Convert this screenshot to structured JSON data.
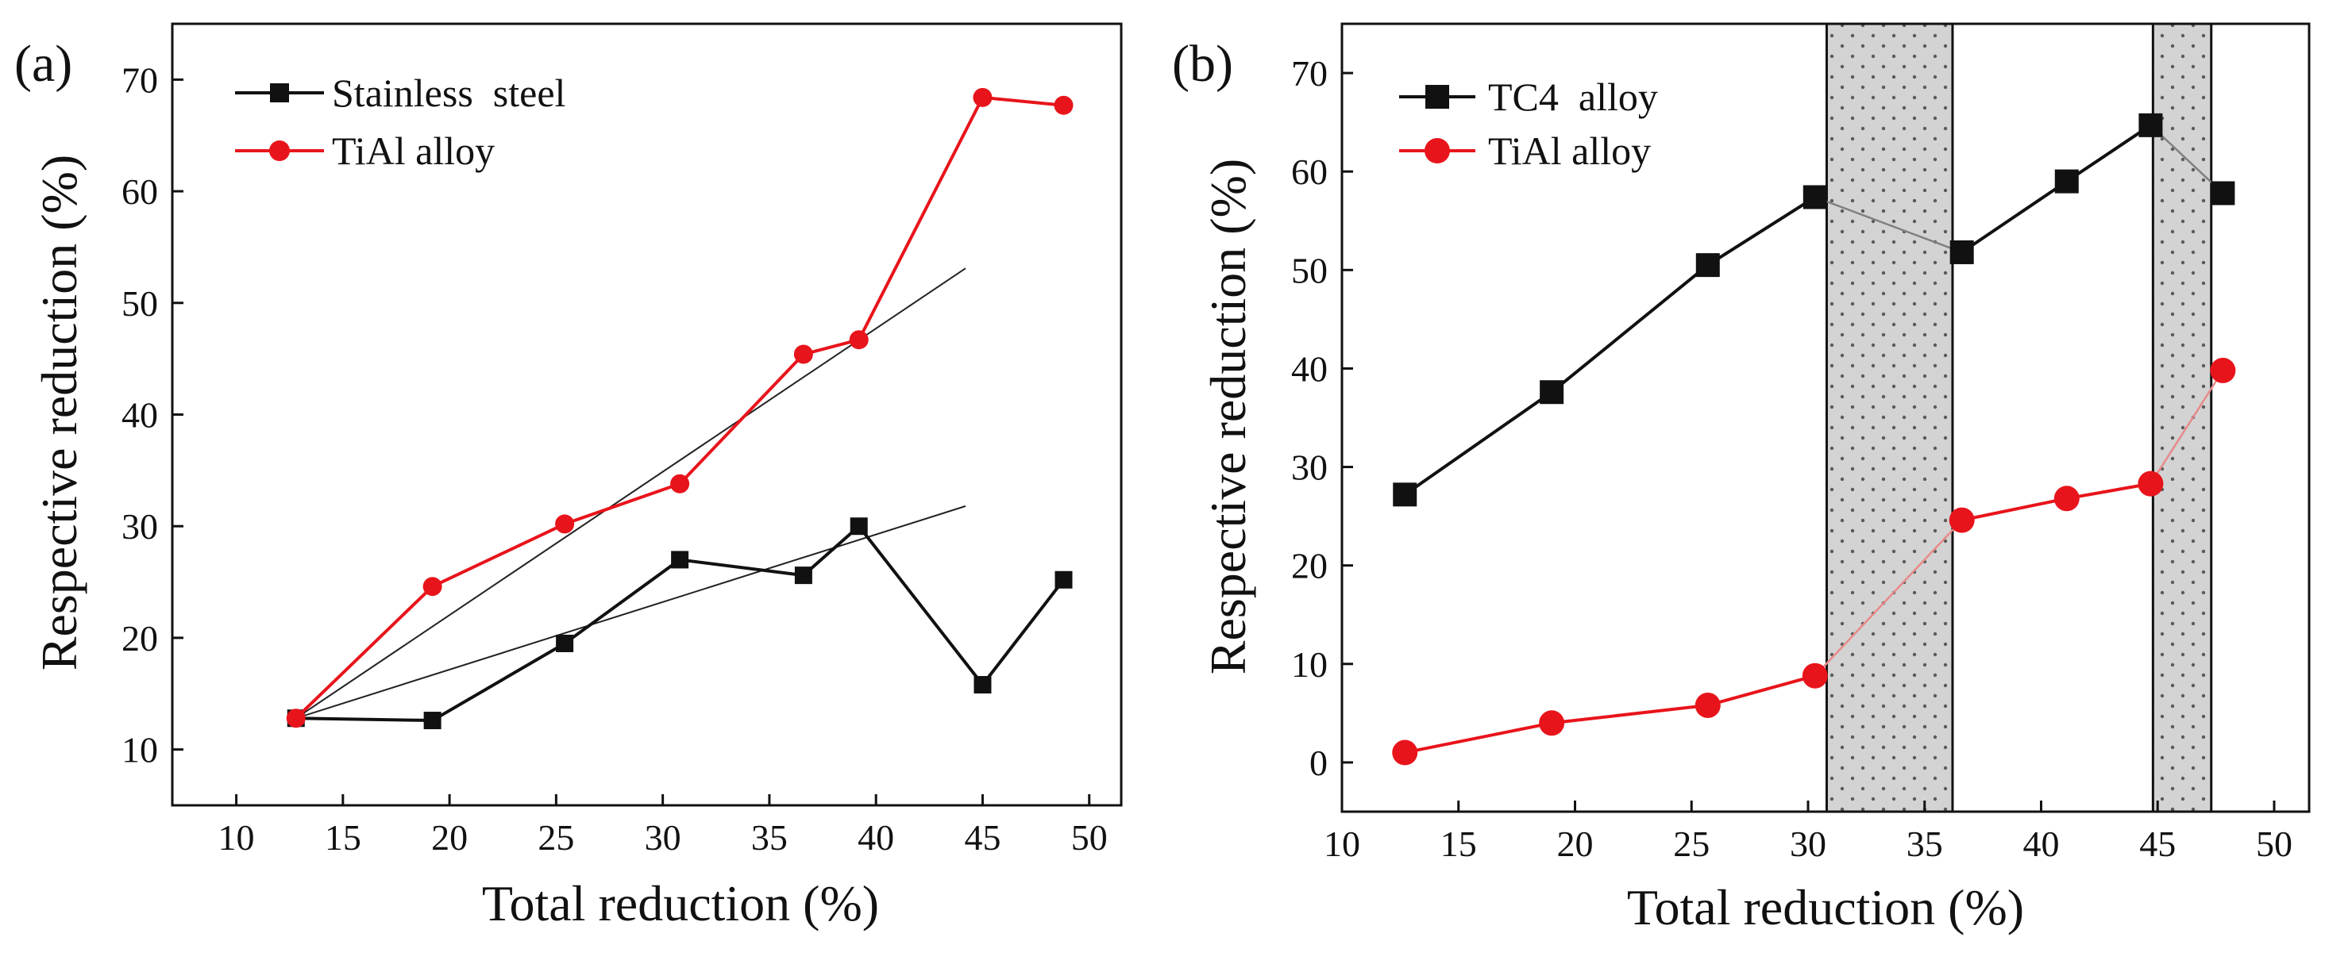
{
  "chart_data": [
    {
      "panel_label": "(a)",
      "type": "line",
      "xlabel": "Total reduction (%)",
      "ylabel": "Respective reduction (%)",
      "xlim": [
        7,
        51.5
      ],
      "ylim": [
        5,
        75
      ],
      "xticks": [
        10,
        15,
        20,
        25,
        30,
        35,
        40,
        45,
        50
      ],
      "yticks": [
        10,
        20,
        30,
        40,
        50,
        60,
        70
      ],
      "legend_position": "top-left",
      "series": [
        {
          "name": "Stainless  steel",
          "marker": "square",
          "color": "#111111",
          "x": [
            12.8,
            19.2,
            25.4,
            30.8,
            36.6,
            39.2,
            45.0,
            48.8
          ],
          "y": [
            12.8,
            12.6,
            19.5,
            27.0,
            25.6,
            30.0,
            15.8,
            25.2
          ]
        },
        {
          "name": "TiAl alloy",
          "marker": "circle",
          "color": "#e8141b",
          "x": [
            12.8,
            19.2,
            25.4,
            30.8,
            36.6,
            39.2,
            45.0,
            48.8
          ],
          "y": [
            12.8,
            24.6,
            30.2,
            33.8,
            45.4,
            46.7,
            68.4,
            67.7
          ]
        }
      ],
      "fit_lines": [
        {
          "name": "Stainless steel linear fit",
          "x": [
            12.8,
            44.2
          ],
          "y": [
            12.8,
            31.8
          ]
        },
        {
          "name": "TiAl alloy linear fit",
          "x": [
            12.8,
            44.2
          ],
          "y": [
            12.8,
            53.1
          ]
        }
      ]
    },
    {
      "panel_label": "(b)",
      "type": "line",
      "xlabel": "Total reduction (%)",
      "ylabel": "Respective reduction (%)",
      "xlim": [
        10,
        51.5
      ],
      "ylim": [
        -5,
        75
      ],
      "xticks": [
        10,
        15,
        20,
        25,
        30,
        35,
        40,
        45,
        50
      ],
      "yticks": [
        0,
        10,
        20,
        30,
        40,
        50,
        60,
        70
      ],
      "legend_position": "top-left",
      "shaded_regions": [
        {
          "x_from": 30.8,
          "x_to": 36.2,
          "pattern": "dotted gray"
        },
        {
          "x_from": 44.8,
          "x_to": 47.3,
          "pattern": "dotted gray"
        }
      ],
      "series": [
        {
          "name": "TC4  alloy",
          "marker": "square",
          "color": "#111111",
          "x": [
            12.7,
            19.0,
            25.7,
            30.3,
            36.6,
            41.1,
            44.7,
            47.8
          ],
          "y": [
            27.2,
            37.6,
            50.5,
            57.4,
            51.8,
            59.0,
            64.7,
            57.8
          ]
        },
        {
          "name": "TiAl alloy",
          "marker": "circle",
          "color": "#e8141b",
          "x": [
            12.7,
            19.0,
            25.7,
            30.3,
            36.6,
            41.1,
            44.7,
            47.8
          ],
          "y": [
            1.0,
            4.0,
            5.8,
            8.8,
            24.6,
            26.8,
            28.3,
            39.8
          ]
        }
      ],
      "faint_segments_across_regions": [
        [
          3,
          4
        ],
        [
          6,
          7
        ]
      ]
    }
  ]
}
